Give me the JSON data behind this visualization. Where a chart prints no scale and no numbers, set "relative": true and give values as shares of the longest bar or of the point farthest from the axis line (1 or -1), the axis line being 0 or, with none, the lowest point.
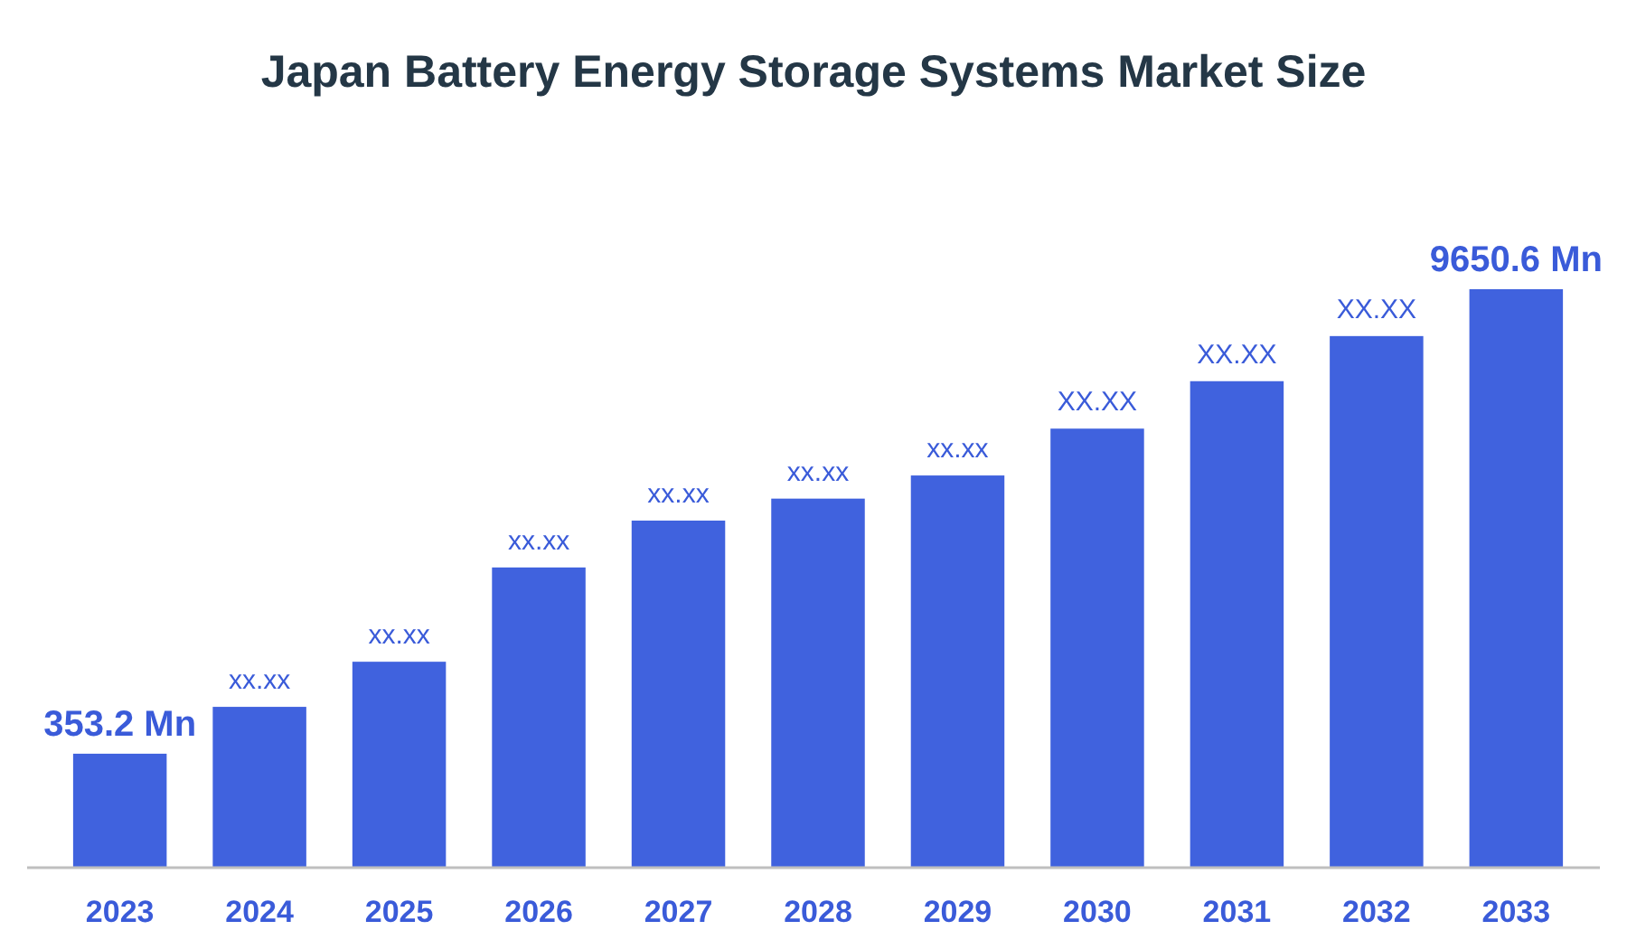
{
  "chart_data": {
    "type": "bar",
    "title": "Japan Battery Energy Storage Systems Market Size",
    "categories": [
      "2023",
      "2024",
      "2025",
      "2026",
      "2027",
      "2028",
      "2029",
      "2030",
      "2031",
      "2032",
      "2033"
    ],
    "values": [
      0.197,
      0.278,
      0.356,
      0.519,
      0.6,
      0.638,
      0.678,
      0.759,
      0.841,
      0.919,
      1
    ],
    "color": "#4062de",
    "relative": true,
    "annotations": [
      "353.2 Mn",
      "xx.xx",
      "xx.xx",
      "xx.xx",
      "xx.xx",
      "xx.xx",
      "xx.xx",
      "XX.XX",
      "XX.XX",
      "XX.XX",
      "9650.6 Mn"
    ]
  }
}
